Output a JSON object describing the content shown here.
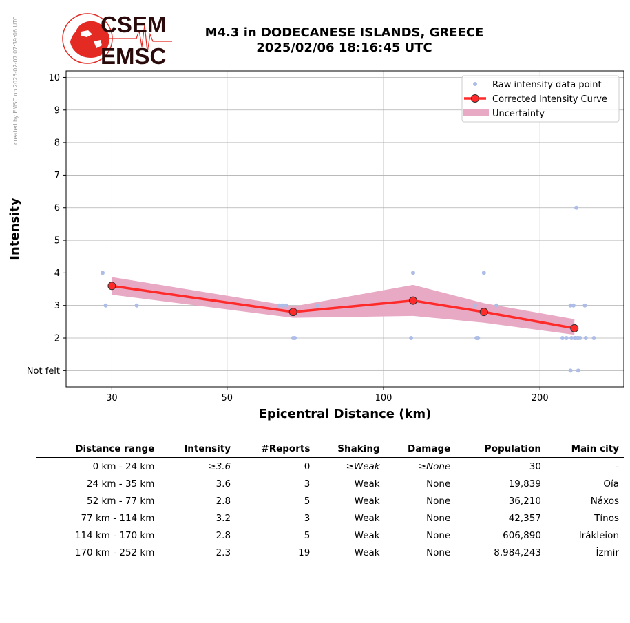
{
  "watermark": "created by EMSC on 2025-02-07 07:39:06 UTC",
  "logo": {
    "top_text": "CSEM",
    "bottom_text": "EMSC",
    "brand_color": "#e32b24",
    "text_color": "#2a0a0a"
  },
  "title": {
    "line1": "M4.3 in DODECANESE ISLANDS, GREECE",
    "line2": "2025/02/06 18:16:45 UTC"
  },
  "chart_data": {
    "type": "scatter",
    "xlabel": "Epicentral Distance (km)",
    "ylabel": "Intensity",
    "x_scale": "log",
    "xlim": [
      24.5,
      290
    ],
    "ylim": [
      0.5,
      10.2
    ],
    "x_ticks": [
      30,
      50,
      100,
      200
    ],
    "x_tick_labels": [
      "30",
      "50",
      "100",
      "200"
    ],
    "y_ticks": [
      1,
      2,
      3,
      4,
      5,
      6,
      7,
      8,
      9,
      10
    ],
    "y_tick_labels": [
      "Not felt",
      "2",
      "3",
      "4",
      "5",
      "6",
      "7",
      "8",
      "9",
      "10"
    ],
    "grid": true,
    "legend_position": "top-right",
    "colors": {
      "raw": "#aebde8",
      "curve": "#ff2a2a",
      "curve_marker_edge": "#333333",
      "band": "#e8a9c4"
    },
    "series": [
      {
        "name": "Raw intensity data point",
        "kind": "scatter",
        "points": [
          [
            28.8,
            4
          ],
          [
            29.2,
            3
          ],
          [
            33.5,
            3
          ],
          [
            63,
            3
          ],
          [
            64,
            3
          ],
          [
            65,
            3
          ],
          [
            67,
            2
          ],
          [
            67.5,
            2
          ],
          [
            74.5,
            3
          ],
          [
            113,
            2
          ],
          [
            114,
            4
          ],
          [
            150,
            3
          ],
          [
            151,
            2
          ],
          [
            152,
            2
          ],
          [
            156,
            4
          ],
          [
            165,
            3
          ],
          [
            221,
            2
          ],
          [
            225,
            2
          ],
          [
            229,
            3
          ],
          [
            229,
            1
          ],
          [
            230,
            2
          ],
          [
            232,
            3
          ],
          [
            233,
            2
          ],
          [
            234,
            2
          ],
          [
            235,
            6
          ],
          [
            236,
            2
          ],
          [
            237,
            2
          ],
          [
            237,
            1
          ],
          [
            239,
            2
          ],
          [
            244,
            3
          ],
          [
            245,
            2
          ],
          [
            254,
            2
          ]
        ]
      },
      {
        "name": "Corrected Intensity Curve",
        "kind": "line",
        "points": [
          [
            30,
            3.6
          ],
          [
            67,
            2.8
          ],
          [
            114,
            3.15
          ],
          [
            156,
            2.8
          ],
          [
            233,
            2.3
          ]
        ]
      },
      {
        "name": "Uncertainty",
        "kind": "band",
        "upper": [
          [
            30,
            3.87
          ],
          [
            67,
            2.97
          ],
          [
            114,
            3.63
          ],
          [
            156,
            3.07
          ],
          [
            233,
            2.58
          ]
        ],
        "lower": [
          [
            30,
            3.33
          ],
          [
            67,
            2.62
          ],
          [
            114,
            2.68
          ],
          [
            156,
            2.47
          ],
          [
            233,
            2.1
          ]
        ]
      }
    ]
  },
  "table": {
    "headers": [
      "Distance range",
      "Intensity",
      "#Reports",
      "Shaking",
      "Damage",
      "Population",
      "Main city"
    ],
    "rows": [
      {
        "range": "0 km -   24 km",
        "intensity": "≥3.6",
        "reports": "0",
        "shaking": "≥Weak",
        "damage": "≥None",
        "population": "30",
        "city": "-"
      },
      {
        "range": "24 km -   35 km",
        "intensity": "3.6",
        "reports": "3",
        "shaking": "Weak",
        "damage": "None",
        "population": "19,839",
        "city": "Oía"
      },
      {
        "range": "52 km -   77 km",
        "intensity": "2.8",
        "reports": "5",
        "shaking": "Weak",
        "damage": "None",
        "population": "36,210",
        "city": "Náxos"
      },
      {
        "range": "77 km -  114 km",
        "intensity": "3.2",
        "reports": "3",
        "shaking": "Weak",
        "damage": "None",
        "population": "42,357",
        "city": "Tínos"
      },
      {
        "range": "114 km -  170 km",
        "intensity": "2.8",
        "reports": "5",
        "shaking": "Weak",
        "damage": "None",
        "population": "606,890",
        "city": "Irákleion"
      },
      {
        "range": "170 km -  252 km",
        "intensity": "2.3",
        "reports": "19",
        "shaking": "Weak",
        "damage": "None",
        "population": "8,984,243",
        "city": "İzmir"
      }
    ]
  }
}
